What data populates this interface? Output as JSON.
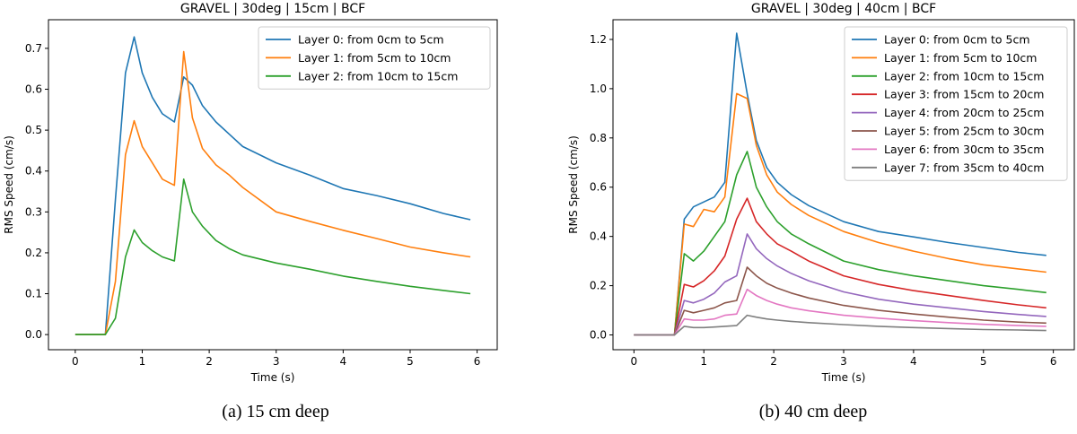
{
  "chart_data": [
    {
      "type": "line",
      "title": "GRAVEL | 30deg | 15cm | BCF",
      "xlabel": "Time (s)",
      "ylabel": "RMS Speed (cm/s)",
      "xlim": [
        -0.4,
        6.3
      ],
      "ylim": [
        -0.037,
        0.77
      ],
      "xticks": [
        0,
        1,
        2,
        3,
        4,
        5,
        6
      ],
      "yticks": [
        0.0,
        0.1,
        0.2,
        0.3,
        0.4,
        0.5,
        0.6,
        0.7
      ],
      "ytick_decimals": 1,
      "legend_position": "top-right",
      "series": [
        {
          "name": "Layer 0: from 0cm to 5cm",
          "color": "#1f77b4",
          "x": [
            0,
            0.45,
            0.6,
            0.75,
            0.88,
            1.0,
            1.15,
            1.3,
            1.48,
            1.62,
            1.75,
            1.9,
            2.1,
            2.3,
            2.5,
            3.0,
            3.5,
            4.0,
            4.5,
            5.0,
            5.5,
            5.9
          ],
          "y": [
            0,
            0,
            0.33,
            0.64,
            0.728,
            0.64,
            0.58,
            0.54,
            0.52,
            0.63,
            0.61,
            0.56,
            0.52,
            0.49,
            0.46,
            0.42,
            0.39,
            0.357,
            0.34,
            0.32,
            0.296,
            0.281
          ]
        },
        {
          "name": "Layer 1: from 5cm to 10cm",
          "color": "#ff7f0e",
          "x": [
            0,
            0.45,
            0.6,
            0.75,
            0.88,
            1.0,
            1.15,
            1.3,
            1.48,
            1.62,
            1.75,
            1.9,
            2.1,
            2.3,
            2.5,
            3.0,
            3.5,
            4.0,
            4.5,
            5.0,
            5.5,
            5.9
          ],
          "y": [
            0,
            0,
            0.13,
            0.44,
            0.523,
            0.46,
            0.42,
            0.38,
            0.365,
            0.692,
            0.53,
            0.455,
            0.415,
            0.39,
            0.36,
            0.3,
            0.277,
            0.255,
            0.235,
            0.214,
            0.2,
            0.19
          ]
        },
        {
          "name": "Layer 2: from 10cm to 15cm",
          "color": "#2ca02c",
          "x": [
            0,
            0.45,
            0.6,
            0.75,
            0.88,
            1.0,
            1.15,
            1.3,
            1.48,
            1.62,
            1.75,
            1.9,
            2.1,
            2.3,
            2.5,
            3.0,
            3.5,
            4.0,
            4.5,
            5.0,
            5.5,
            5.9
          ],
          "y": [
            0,
            0,
            0.04,
            0.19,
            0.256,
            0.225,
            0.205,
            0.19,
            0.18,
            0.38,
            0.3,
            0.265,
            0.23,
            0.21,
            0.195,
            0.175,
            0.16,
            0.143,
            0.13,
            0.118,
            0.108,
            0.1
          ]
        }
      ]
    },
    {
      "type": "line",
      "title": "GRAVEL | 30deg | 40cm | BCF",
      "xlabel": "Time (s)",
      "ylabel": "RMS Speed (cm/s)",
      "xlim": [
        -0.3,
        6.3
      ],
      "ylim": [
        -0.06,
        1.28
      ],
      "xticks": [
        0,
        1,
        2,
        3,
        4,
        5,
        6
      ],
      "yticks": [
        0.0,
        0.2,
        0.4,
        0.6,
        0.8,
        1.0,
        1.2
      ],
      "ytick_decimals": 1,
      "legend_position": "top-right",
      "series": [
        {
          "name": "Layer 0: from 0cm to 5cm",
          "color": "#1f77b4",
          "x": [
            0,
            0.58,
            0.72,
            0.85,
            1.0,
            1.15,
            1.3,
            1.47,
            1.62,
            1.75,
            1.9,
            2.05,
            2.25,
            2.5,
            3.0,
            3.5,
            4.0,
            4.5,
            5.0,
            5.5,
            5.9
          ],
          "y": [
            0,
            0,
            0.47,
            0.52,
            0.54,
            0.56,
            0.62,
            1.225,
            0.98,
            0.79,
            0.68,
            0.62,
            0.57,
            0.525,
            0.46,
            0.42,
            0.398,
            0.375,
            0.355,
            0.335,
            0.323
          ]
        },
        {
          "name": "Layer 1: from 5cm to 10cm",
          "color": "#ff7f0e",
          "x": [
            0,
            0.58,
            0.72,
            0.85,
            1.0,
            1.15,
            1.3,
            1.47,
            1.62,
            1.75,
            1.9,
            2.05,
            2.25,
            2.5,
            3.0,
            3.5,
            4.0,
            4.5,
            5.0,
            5.5,
            5.9
          ],
          "y": [
            0,
            0,
            0.45,
            0.44,
            0.51,
            0.5,
            0.56,
            0.98,
            0.96,
            0.77,
            0.65,
            0.58,
            0.53,
            0.485,
            0.42,
            0.375,
            0.34,
            0.31,
            0.285,
            0.268,
            0.255
          ]
        },
        {
          "name": "Layer 2: from 10cm to 15cm",
          "color": "#2ca02c",
          "x": [
            0,
            0.58,
            0.72,
            0.85,
            1.0,
            1.15,
            1.3,
            1.47,
            1.62,
            1.75,
            1.9,
            2.05,
            2.25,
            2.5,
            3.0,
            3.5,
            4.0,
            4.5,
            5.0,
            5.5,
            5.9
          ],
          "y": [
            0,
            0,
            0.33,
            0.3,
            0.34,
            0.4,
            0.46,
            0.65,
            0.745,
            0.6,
            0.52,
            0.46,
            0.41,
            0.37,
            0.3,
            0.265,
            0.24,
            0.22,
            0.2,
            0.185,
            0.172
          ]
        },
        {
          "name": "Layer 3: from 15cm to 20cm",
          "color": "#d62728",
          "x": [
            0,
            0.58,
            0.72,
            0.85,
            1.0,
            1.15,
            1.3,
            1.47,
            1.62,
            1.75,
            1.9,
            2.05,
            2.25,
            2.5,
            3.0,
            3.5,
            4.0,
            4.5,
            5.0,
            5.5,
            5.9
          ],
          "y": [
            0,
            0,
            0.205,
            0.195,
            0.22,
            0.26,
            0.32,
            0.47,
            0.555,
            0.46,
            0.41,
            0.37,
            0.34,
            0.3,
            0.24,
            0.205,
            0.18,
            0.16,
            0.14,
            0.122,
            0.11
          ]
        },
        {
          "name": "Layer 4: from 20cm to 25cm",
          "color": "#9467bd",
          "x": [
            0,
            0.58,
            0.72,
            0.85,
            1.0,
            1.15,
            1.3,
            1.47,
            1.62,
            1.75,
            1.9,
            2.05,
            2.25,
            2.5,
            3.0,
            3.5,
            4.0,
            4.5,
            5.0,
            5.5,
            5.9
          ],
          "y": [
            0,
            0,
            0.14,
            0.13,
            0.145,
            0.17,
            0.215,
            0.24,
            0.41,
            0.35,
            0.31,
            0.28,
            0.25,
            0.22,
            0.175,
            0.145,
            0.125,
            0.11,
            0.095,
            0.083,
            0.075
          ]
        },
        {
          "name": "Layer 5: from 25cm to 30cm",
          "color": "#8c564b",
          "x": [
            0,
            0.58,
            0.72,
            0.85,
            1.0,
            1.15,
            1.3,
            1.47,
            1.62,
            1.75,
            1.9,
            2.05,
            2.25,
            2.5,
            3.0,
            3.5,
            4.0,
            4.5,
            5.0,
            5.5,
            5.9
          ],
          "y": [
            0,
            0,
            0.1,
            0.09,
            0.1,
            0.11,
            0.13,
            0.14,
            0.275,
            0.24,
            0.21,
            0.19,
            0.17,
            0.15,
            0.12,
            0.1,
            0.085,
            0.072,
            0.06,
            0.052,
            0.048
          ]
        },
        {
          "name": "Layer 6: from 30cm to 35cm",
          "color": "#e377c2",
          "x": [
            0,
            0.58,
            0.72,
            0.85,
            1.0,
            1.15,
            1.3,
            1.47,
            1.62,
            1.75,
            1.9,
            2.05,
            2.25,
            2.5,
            3.0,
            3.5,
            4.0,
            4.5,
            5.0,
            5.5,
            5.9
          ],
          "y": [
            0,
            0,
            0.065,
            0.06,
            0.06,
            0.065,
            0.08,
            0.085,
            0.185,
            0.16,
            0.14,
            0.125,
            0.11,
            0.098,
            0.08,
            0.068,
            0.058,
            0.05,
            0.043,
            0.038,
            0.035
          ]
        },
        {
          "name": "Layer 7: from 35cm to 40cm",
          "color": "#7f7f7f",
          "x": [
            0,
            0.58,
            0.72,
            0.85,
            1.0,
            1.15,
            1.3,
            1.47,
            1.62,
            1.75,
            1.9,
            2.05,
            2.25,
            2.5,
            3.0,
            3.5,
            4.0,
            4.5,
            5.0,
            5.5,
            5.9
          ],
          "y": [
            0,
            0,
            0.035,
            0.03,
            0.03,
            0.032,
            0.035,
            0.038,
            0.08,
            0.072,
            0.065,
            0.06,
            0.055,
            0.05,
            0.042,
            0.035,
            0.03,
            0.026,
            0.022,
            0.02,
            0.018
          ]
        }
      ]
    }
  ],
  "captions": {
    "left": "(a) 15 cm deep",
    "right": "(b) 40 cm deep"
  }
}
